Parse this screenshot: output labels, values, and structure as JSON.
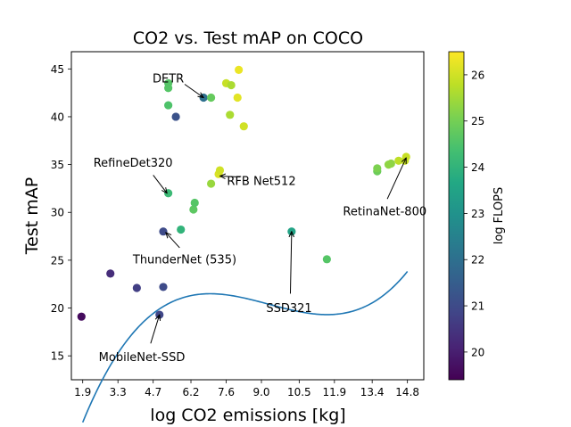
{
  "chart_data": {
    "type": "scatter",
    "title": "CO2 vs. Test mAP on COCO",
    "xlabel": "log CO2 emissions [kg]",
    "ylabel": "Test mAP",
    "xlim": [
      1.45,
      15.45
    ],
    "ylim": [
      12.5,
      46.8
    ],
    "xticks": [
      1.9,
      3.3,
      4.7,
      6.2,
      7.6,
      9.0,
      10.5,
      11.9,
      13.4,
      14.8
    ],
    "xtick_labels": [
      "1.9",
      "3.3",
      "4.7",
      "6.2",
      "7.6",
      "9.0",
      "10.5",
      "11.9",
      "13.4",
      "14.8"
    ],
    "yticks": [
      15,
      20,
      25,
      30,
      35,
      40,
      45
    ],
    "ytick_labels": [
      "15",
      "20",
      "25",
      "30",
      "35",
      "40",
      "45"
    ],
    "colorbar": {
      "label": "log FLOPS",
      "min": 19.4,
      "max": 26.5,
      "ticks": [
        20,
        21,
        22,
        23,
        24,
        25,
        26
      ],
      "tick_labels": [
        "20",
        "21",
        "22",
        "23",
        "24",
        "25",
        "26"
      ]
    },
    "points": [
      {
        "x": 1.85,
        "y": 19.1,
        "c": 19.6
      },
      {
        "x": 3.0,
        "y": 23.6,
        "c": 20.3
      },
      {
        "x": 4.05,
        "y": 22.1,
        "c": 20.7
      },
      {
        "x": 4.95,
        "y": 19.3,
        "c": 20.9
      },
      {
        "x": 5.1,
        "y": 22.2,
        "c": 21.0
      },
      {
        "x": 5.1,
        "y": 28.0,
        "c": 21.0
      },
      {
        "x": 5.3,
        "y": 32.0,
        "c": 24.2
      },
      {
        "x": 5.3,
        "y": 41.2,
        "c": 24.5
      },
      {
        "x": 5.3,
        "y": 43.0,
        "c": 24.6
      },
      {
        "x": 5.3,
        "y": 43.5,
        "c": 24.6
      },
      {
        "x": 5.6,
        "y": 40.0,
        "c": 21.2
      },
      {
        "x": 5.8,
        "y": 28.2,
        "c": 24.0
      },
      {
        "x": 6.3,
        "y": 30.3,
        "c": 24.7
      },
      {
        "x": 6.35,
        "y": 31.0,
        "c": 24.6
      },
      {
        "x": 6.7,
        "y": 42.0,
        "c": 22.0
      },
      {
        "x": 7.0,
        "y": 33.0,
        "c": 25.4
      },
      {
        "x": 7.0,
        "y": 42.0,
        "c": 24.8
      },
      {
        "x": 7.3,
        "y": 34.0,
        "c": 26.1
      },
      {
        "x": 7.35,
        "y": 34.4,
        "c": 26.0
      },
      {
        "x": 7.6,
        "y": 43.5,
        "c": 25.9
      },
      {
        "x": 7.75,
        "y": 40.2,
        "c": 25.6
      },
      {
        "x": 7.8,
        "y": 43.3,
        "c": 25.6
      },
      {
        "x": 8.05,
        "y": 42.0,
        "c": 26.2
      },
      {
        "x": 8.1,
        "y": 44.9,
        "c": 26.3
      },
      {
        "x": 8.3,
        "y": 39.0,
        "c": 26.0
      },
      {
        "x": 10.2,
        "y": 28.0,
        "c": 23.5
      },
      {
        "x": 11.6,
        "y": 25.1,
        "c": 24.6
      },
      {
        "x": 13.6,
        "y": 34.3,
        "c": 24.9
      },
      {
        "x": 13.6,
        "y": 34.6,
        "c": 25.1
      },
      {
        "x": 14.05,
        "y": 35.0,
        "c": 25.3
      },
      {
        "x": 14.15,
        "y": 35.1,
        "c": 25.3
      },
      {
        "x": 14.45,
        "y": 35.4,
        "c": 25.8
      },
      {
        "x": 14.7,
        "y": 35.4,
        "c": 25.9
      },
      {
        "x": 14.75,
        "y": 35.8,
        "c": 25.9
      }
    ],
    "fit_curve": {
      "type": "cubic",
      "x_range": [
        1.9,
        14.8
      ],
      "coefficients": [
        0.0436,
        -1.2146,
        10.5734,
        -7.96
      ]
    },
    "annotations": [
      {
        "text": "DETR",
        "x": 6.7,
        "y": 42.0,
        "text_x": 5.3,
        "text_y": 44.0,
        "align": "middle",
        "arrow_start_x": 5.95,
        "arrow_start_y": 43.4
      },
      {
        "text": "RefineDet320",
        "x": 5.25,
        "y": 32.0,
        "text_x": 3.9,
        "text_y": 35.2,
        "align": "middle",
        "arrow_start_x": 4.7,
        "arrow_start_y": 33.9
      },
      {
        "text": "RFB Net512",
        "x": 7.35,
        "y": 33.8,
        "text_x": 9.0,
        "text_y": 33.3,
        "align": "middle",
        "arrow_start_x": 8.15,
        "arrow_start_y": 33.7
      },
      {
        "text": "RetinaNet-800",
        "x": 14.75,
        "y": 35.7,
        "text_x": 13.9,
        "text_y": 30.1,
        "align": "middle",
        "arrow_start_x": 14.0,
        "arrow_start_y": 31.4
      },
      {
        "text": "ThunderNet (535)",
        "x": 5.2,
        "y": 27.9,
        "text_x": 5.95,
        "text_y": 25.1,
        "align": "middle",
        "arrow_start_x": 5.75,
        "arrow_start_y": 26.3
      },
      {
        "text": "SSD321",
        "x": 10.2,
        "y": 28.0,
        "text_x": 10.1,
        "text_y": 20.0,
        "align": "middle",
        "arrow_start_x": 10.15,
        "arrow_start_y": 21.5
      },
      {
        "text": "MobileNet-SSD",
        "x": 4.95,
        "y": 19.3,
        "text_x": 4.25,
        "text_y": 14.9,
        "align": "middle",
        "arrow_start_x": 4.6,
        "arrow_start_y": 16.3
      }
    ]
  }
}
